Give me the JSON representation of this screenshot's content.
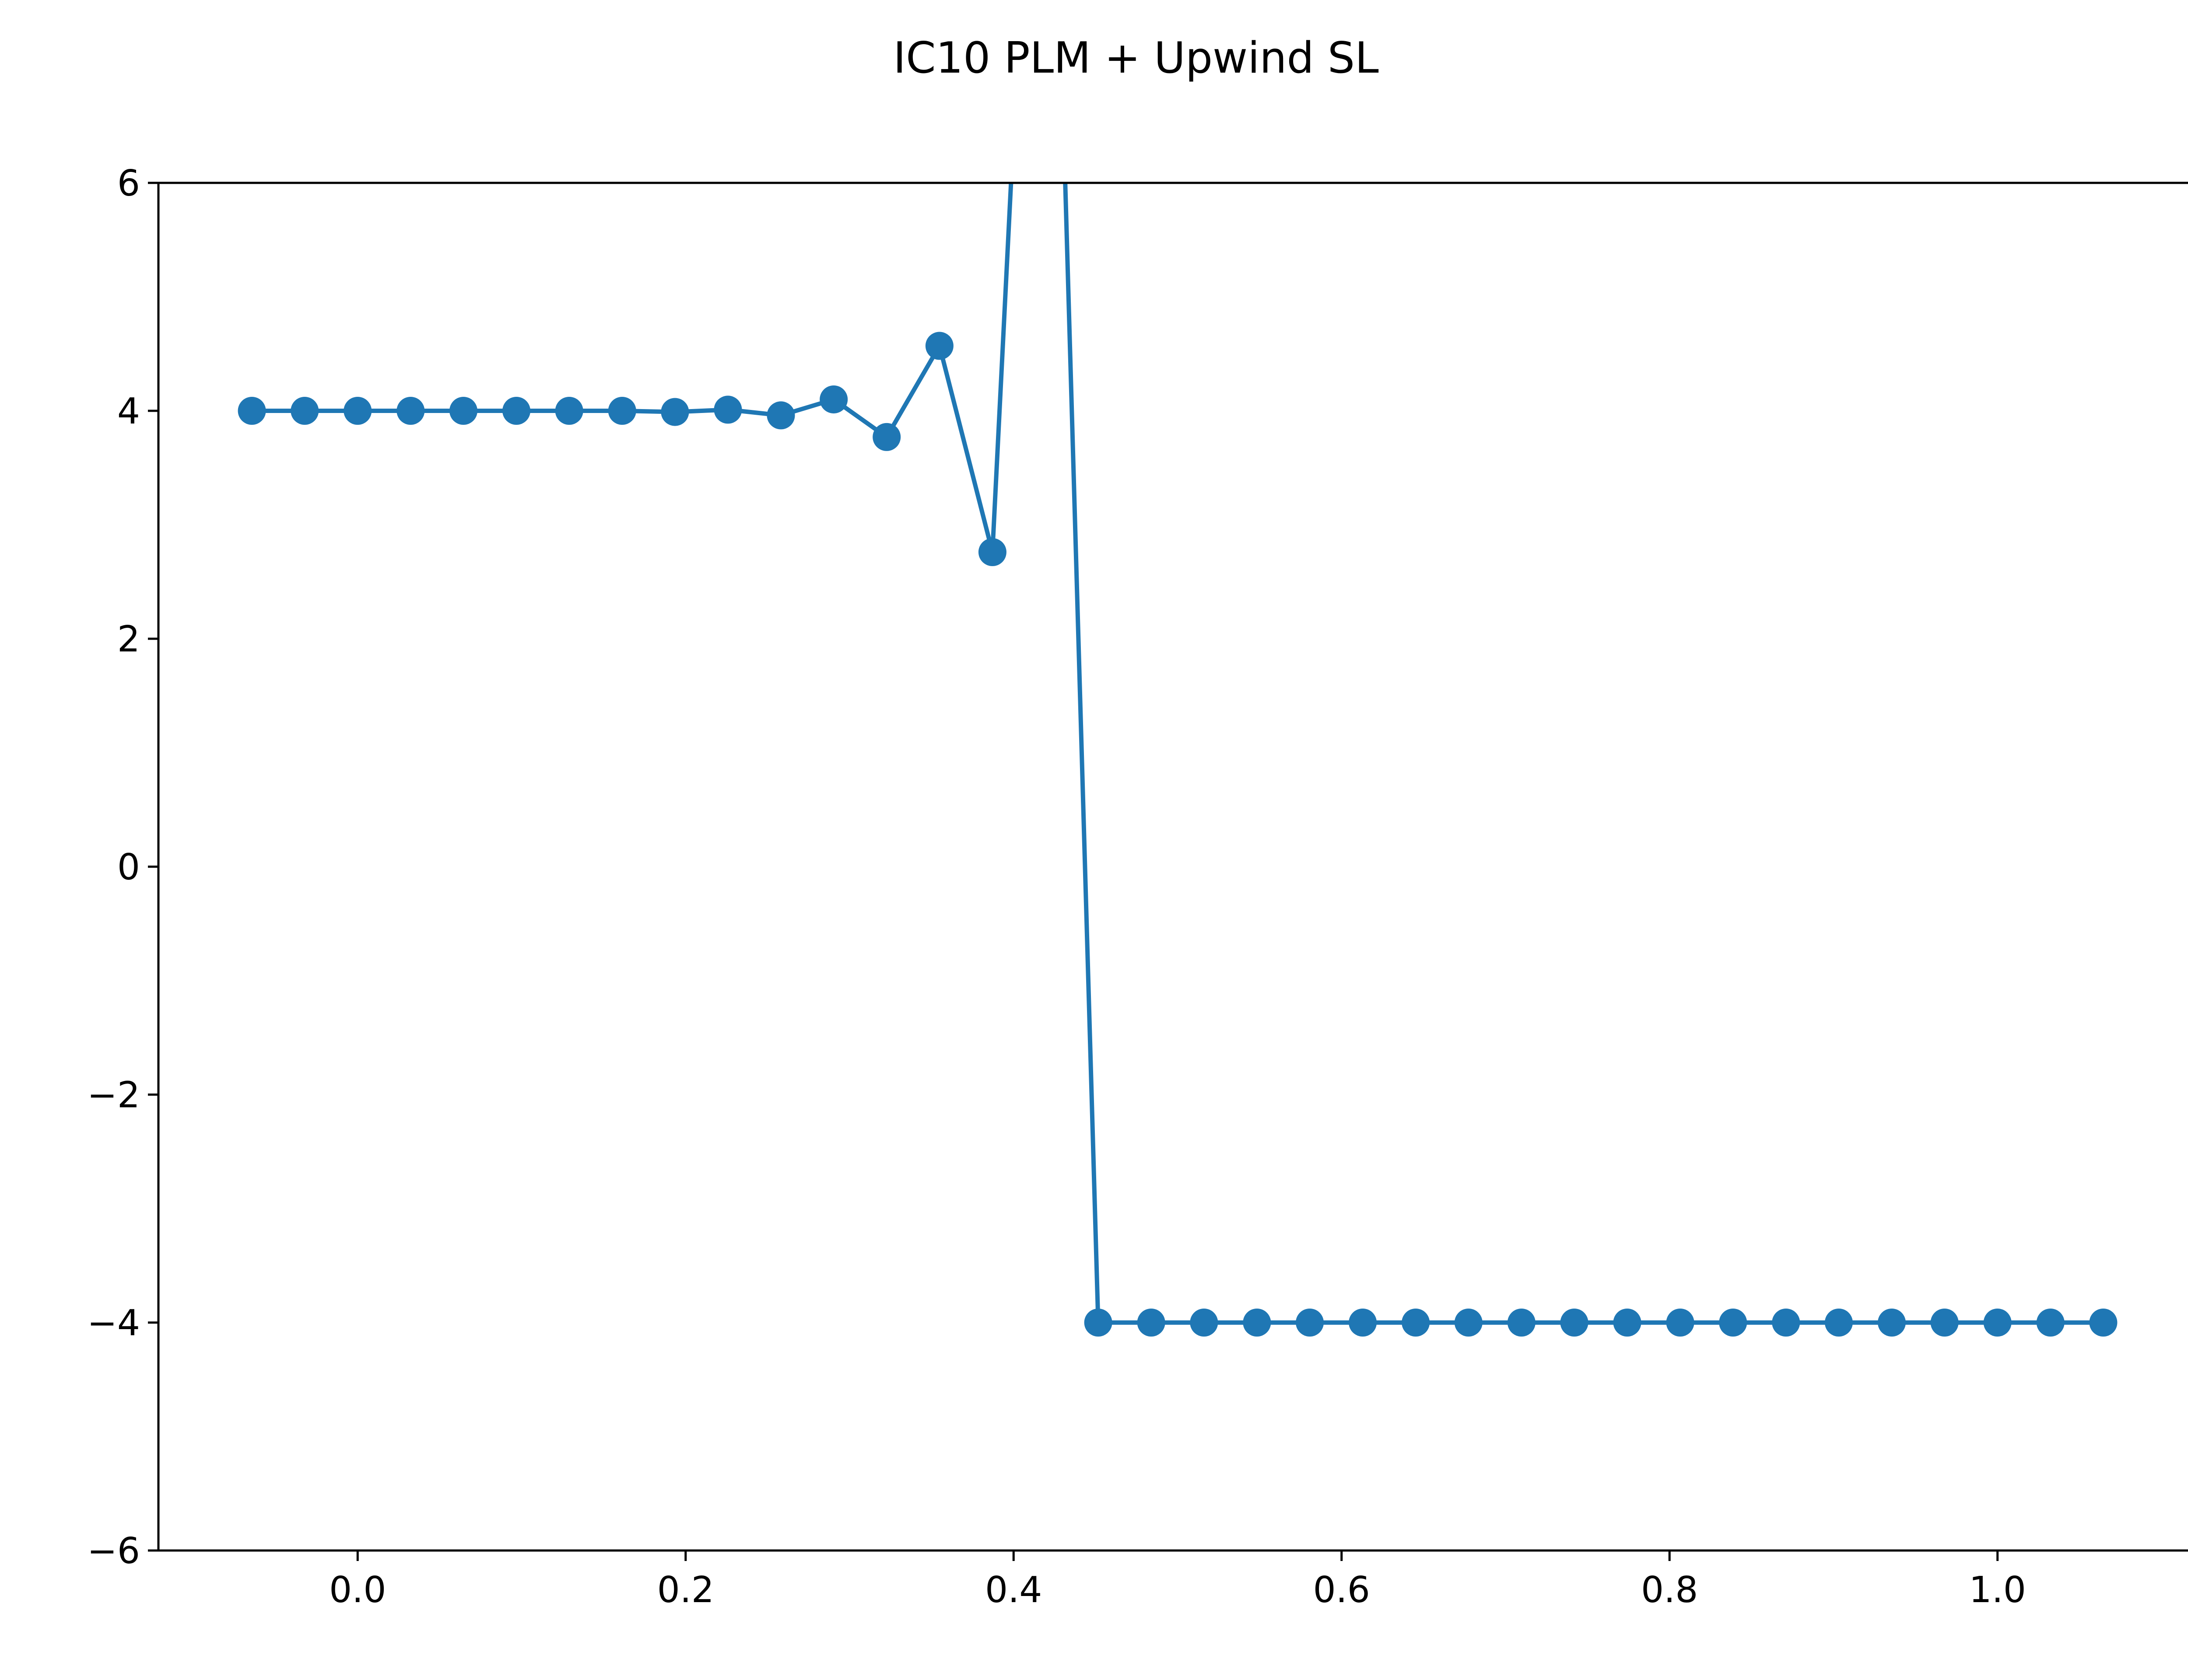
{
  "chart_data": {
    "type": "line",
    "title": "IC10 PLM + Upwind SL",
    "xlabel": "",
    "ylabel": "",
    "xlim": [
      -0.1215,
      1.1215
    ],
    "ylim": [
      -6,
      6
    ],
    "xticks": [
      0.0,
      0.2,
      0.4,
      0.6,
      0.8,
      1.0
    ],
    "xtick_labels": [
      "0.0",
      "0.2",
      "0.4",
      "0.6",
      "0.8",
      "1.0"
    ],
    "yticks": [
      -6,
      -4,
      -2,
      0,
      2,
      4,
      6
    ],
    "ytick_labels": [
      "−6",
      "−4",
      "−2",
      "0",
      "2",
      "4",
      "6"
    ],
    "grid": false,
    "legend": "none",
    "series": [
      {
        "color": "#1f77b4",
        "marker": "circle",
        "x": [
          -0.0645,
          -0.0323,
          0.0,
          0.0323,
          0.0645,
          0.0968,
          0.129,
          0.1613,
          0.1935,
          0.2258,
          0.2581,
          0.2903,
          0.3226,
          0.3548,
          0.3871,
          0.4194,
          0.4516,
          0.4839,
          0.5161,
          0.5484,
          0.5806,
          0.6129,
          0.6452,
          0.6774,
          0.7097,
          0.7419,
          0.7742,
          0.8065,
          0.8387,
          0.871,
          0.9032,
          0.9355,
          0.9677,
          1.0,
          1.0323,
          1.0645
        ],
        "y": [
          4.0,
          4.0,
          4.0,
          4.0,
          4.0,
          4.0,
          4.0,
          4.0,
          3.99,
          4.01,
          3.96,
          4.1,
          3.77,
          4.57,
          2.76,
          12.0,
          -4.0,
          -4.0,
          -4.0,
          -4.0,
          -4.0,
          -4.0,
          -4.0,
          -4.0,
          -4.0,
          -4.0,
          -4.0,
          -4.0,
          -4.0,
          -4.0,
          -4.0,
          -4.0,
          -4.0,
          -4.0,
          -4.0,
          -4.0
        ]
      }
    ]
  }
}
